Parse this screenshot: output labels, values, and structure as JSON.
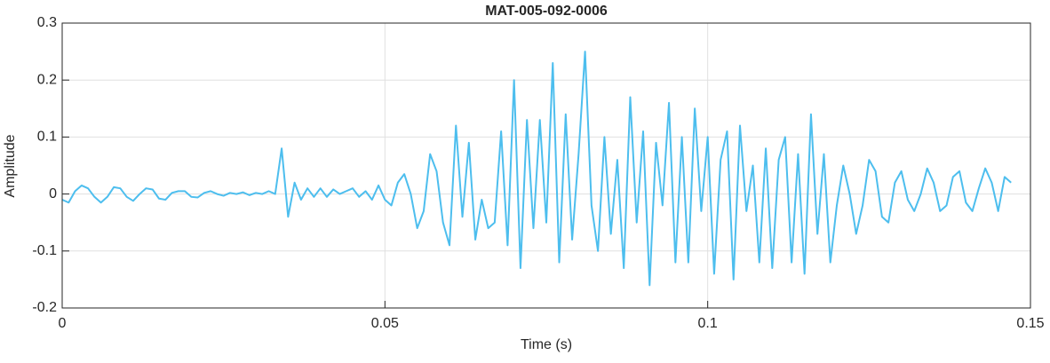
{
  "chart_data": {
    "type": "line",
    "title": "MAT-005-092-0006",
    "x_label": "Time (s)",
    "y_label": "Amplitude",
    "x": [
      0,
      0.001,
      0.002,
      0.003,
      0.004,
      0.005,
      0.006,
      0.007,
      0.008,
      0.009,
      0.01,
      0.011,
      0.012,
      0.013,
      0.014,
      0.015,
      0.016,
      0.017,
      0.018,
      0.019,
      0.02,
      0.021,
      0.022,
      0.023,
      0.024,
      0.025,
      0.026,
      0.027,
      0.028,
      0.029,
      0.03,
      0.031,
      0.032,
      0.033,
      0.034,
      0.035,
      0.036,
      0.037,
      0.038,
      0.039,
      0.04,
      0.041,
      0.042,
      0.043,
      0.044,
      0.045,
      0.046,
      0.047,
      0.048,
      0.049,
      0.05,
      0.051,
      0.052,
      0.053,
      0.054,
      0.055,
      0.056,
      0.057,
      0.058,
      0.059,
      0.06,
      0.061,
      0.062,
      0.063,
      0.064,
      0.065,
      0.066,
      0.067,
      0.068,
      0.069,
      0.07,
      0.071,
      0.072,
      0.073,
      0.074,
      0.075,
      0.076,
      0.077,
      0.078,
      0.079,
      0.08,
      0.081,
      0.082,
      0.083,
      0.084,
      0.085,
      0.086,
      0.087,
      0.088,
      0.089,
      0.09,
      0.091,
      0.092,
      0.093,
      0.094,
      0.095,
      0.096,
      0.097,
      0.098,
      0.099,
      0.1,
      0.101,
      0.102,
      0.103,
      0.104,
      0.105,
      0.106,
      0.107,
      0.108,
      0.109,
      0.11,
      0.111,
      0.112,
      0.113,
      0.114,
      0.115,
      0.116,
      0.117,
      0.118,
      0.119,
      0.12,
      0.121,
      0.122,
      0.123,
      0.124,
      0.125,
      0.126,
      0.127,
      0.128,
      0.129,
      0.13,
      0.131,
      0.132,
      0.133,
      0.134,
      0.135,
      0.136,
      0.137,
      0.138,
      0.139,
      0.14,
      0.141,
      0.142,
      0.143,
      0.144,
      0.145,
      0.146,
      0.147
    ],
    "values": [
      -0.01,
      -0.015,
      0.005,
      0.015,
      0.01,
      -0.005,
      -0.015,
      -0.005,
      0.012,
      0.01,
      -0.005,
      -0.012,
      0,
      0.01,
      0.008,
      -0.008,
      -0.01,
      0.002,
      0.005,
      0.005,
      -0.005,
      -0.006,
      0.002,
      0.005,
      0,
      -0.003,
      0.002,
      0,
      0.003,
      -0.002,
      0.002,
      0,
      0.005,
      0,
      0.08,
      -0.04,
      0.02,
      -0.01,
      0.01,
      -0.005,
      0.01,
      -0.005,
      0.008,
      0,
      0.005,
      0.01,
      -0.005,
      0.005,
      -0.01,
      0.015,
      -0.01,
      -0.02,
      0.02,
      0.035,
      0,
      -0.06,
      -0.03,
      0.07,
      0.04,
      -0.05,
      -0.09,
      0.12,
      -0.04,
      0.09,
      -0.08,
      -0.01,
      -0.06,
      -0.05,
      0.11,
      -0.09,
      0.2,
      -0.13,
      0.13,
      -0.06,
      0.13,
      -0.05,
      0.23,
      -0.12,
      0.14,
      -0.08,
      0.07,
      0.25,
      -0.02,
      -0.1,
      0.1,
      -0.07,
      0.06,
      -0.13,
      0.17,
      -0.05,
      0.11,
      -0.16,
      0.09,
      -0.02,
      0.16,
      -0.12,
      0.1,
      -0.12,
      0.15,
      -0.03,
      0.1,
      -0.14,
      0.06,
      0.11,
      -0.15,
      0.12,
      -0.03,
      0.05,
      -0.12,
      0.08,
      -0.13,
      0.06,
      0.1,
      -0.12,
      0.07,
      -0.14,
      0.14,
      -0.07,
      0.07,
      -0.12,
      -0.02,
      0.05,
      0,
      -0.07,
      -0.02,
      0.06,
      0.04,
      -0.04,
      -0.05,
      0.02,
      0.04,
      -0.01,
      -0.03,
      0,
      0.045,
      0.02,
      -0.03,
      -0.02,
      0.03,
      0.04,
      -0.015,
      -0.03,
      0.01,
      0.045,
      0.02,
      -0.03,
      0.03,
      0.02
    ],
    "color": "#4dbeee",
    "xlim": [
      0,
      0.15
    ],
    "xticks": [
      0,
      0.05,
      0.1,
      0.15
    ],
    "ylim": [
      -0.2,
      0.3
    ],
    "yticks": [
      -0.2,
      -0.1,
      0,
      0.1,
      0.2,
      0.3
    ],
    "grid": true
  }
}
